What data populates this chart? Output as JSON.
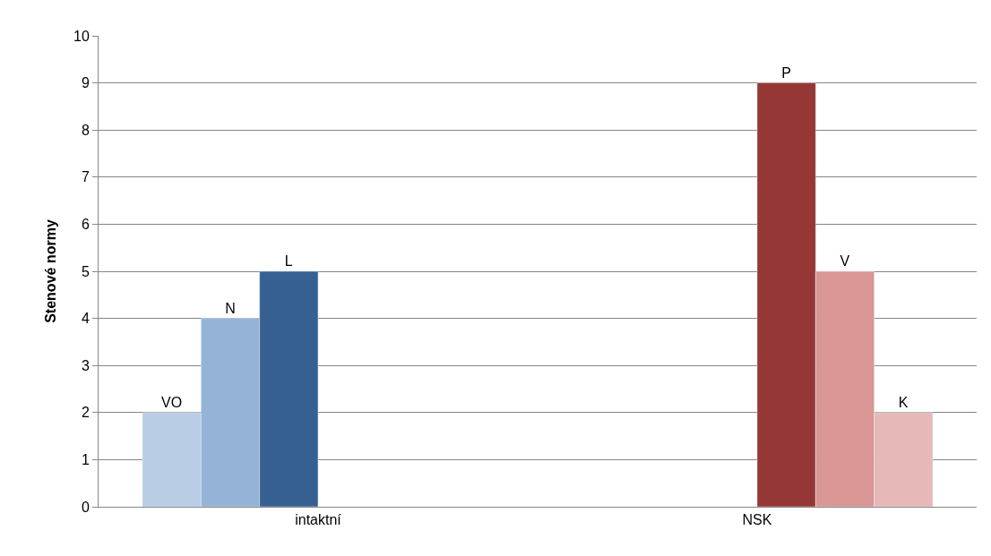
{
  "chart_data": {
    "type": "bar",
    "ylabel": "Stenové normy",
    "categories": [
      "intaktní",
      "NSK"
    ],
    "series": [
      {
        "name": "VO",
        "color": "#b9cde5",
        "values": [
          2,
          null
        ]
      },
      {
        "name": "N",
        "color": "#95b3d7",
        "values": [
          4,
          null
        ]
      },
      {
        "name": "L",
        "color": "#376092",
        "values": [
          5,
          null
        ]
      },
      {
        "name": "P",
        "color": "#953735",
        "values": [
          null,
          9
        ]
      },
      {
        "name": "V",
        "color": "#d99694",
        "values": [
          null,
          5
        ]
      },
      {
        "name": "K",
        "color": "#e6b9b8",
        "values": [
          null,
          2
        ]
      }
    ],
    "ylim": [
      0,
      10
    ],
    "yticks": [
      0,
      1,
      2,
      3,
      4,
      5,
      6,
      7,
      8,
      9,
      10
    ],
    "grid": "y",
    "legend": false
  }
}
